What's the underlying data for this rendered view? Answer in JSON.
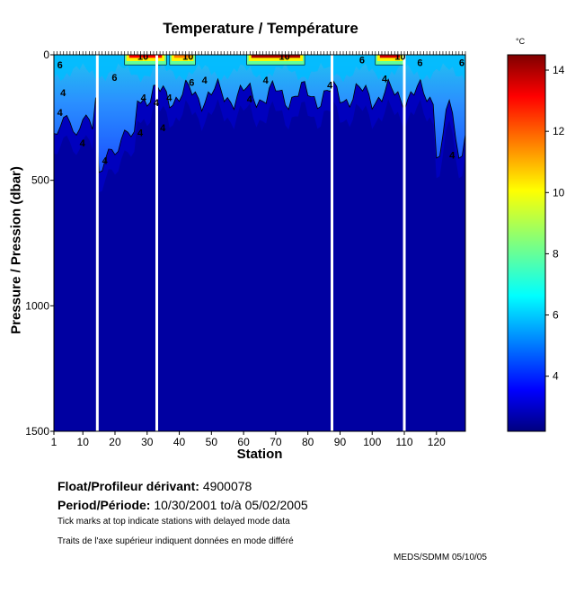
{
  "title": "Temperature / Température",
  "ylabel": "Pressure / Pression (dbar)",
  "xlabel": "Station",
  "colorbar_unit": "°C",
  "float_label": "Float/Profileur dérivant:",
  "float_id": "4900078",
  "period_label": "Period/Période:",
  "period_from": "10/30/2001",
  "period_to_label": "to/à",
  "period_to": "05/02/2005",
  "note_en": "Tick marks at top indicate stations with delayed mode data",
  "note_fr": "Traits de l'axe supérieur indiquent données en mode différé",
  "credit": "MEDS/SDMM  05/10/05",
  "chart_data": {
    "type": "heatmap",
    "x_axis": {
      "label": "Station",
      "range": [
        1,
        129
      ],
      "ticks": [
        1,
        10,
        20,
        30,
        40,
        50,
        60,
        70,
        80,
        90,
        100,
        110,
        120
      ]
    },
    "y_axis": {
      "label": "Pressure / Pression (dbar)",
      "range": [
        0,
        1500
      ],
      "inverted": true,
      "ticks": [
        0,
        500,
        1000,
        1500
      ]
    },
    "colorbar": {
      "unit": "°C",
      "range": [
        2.2,
        14.5
      ],
      "ticks": [
        4,
        6,
        8,
        10,
        12,
        14
      ],
      "colormap": "jet"
    },
    "contour_levels": [
      4,
      6,
      10
    ],
    "contour_labels": [
      {
        "x": 2,
        "p": 40,
        "text": "6"
      },
      {
        "x": 3,
        "p": 150,
        "text": "4"
      },
      {
        "x": 2,
        "p": 230,
        "text": "4"
      },
      {
        "x": 9,
        "p": 350,
        "text": "4"
      },
      {
        "x": 19,
        "p": 90,
        "text": "6"
      },
      {
        "x": 16,
        "p": 420,
        "text": "4"
      },
      {
        "x": 27,
        "p": 310,
        "text": "4"
      },
      {
        "x": 28,
        "p": 170,
        "text": "4"
      },
      {
        "x": 32,
        "p": 190,
        "text": "4"
      },
      {
        "x": 34,
        "p": 290,
        "text": "4"
      },
      {
        "x": 36,
        "p": 170,
        "text": "4"
      },
      {
        "x": 27,
        "p": 5,
        "text": "10"
      },
      {
        "x": 41,
        "p": 5,
        "text": "10"
      },
      {
        "x": 43,
        "p": 110,
        "text": "6"
      },
      {
        "x": 47,
        "p": 100,
        "text": "4"
      },
      {
        "x": 61,
        "p": 175,
        "text": "4"
      },
      {
        "x": 71,
        "p": 5,
        "text": "10"
      },
      {
        "x": 66,
        "p": 100,
        "text": "4"
      },
      {
        "x": 86,
        "p": 120,
        "text": "4"
      },
      {
        "x": 96,
        "p": 20,
        "text": "6"
      },
      {
        "x": 107,
        "p": 5,
        "text": "10"
      },
      {
        "x": 114,
        "p": 30,
        "text": "6"
      },
      {
        "x": 127,
        "p": 30,
        "text": "6"
      },
      {
        "x": 103,
        "p": 95,
        "text": "4"
      },
      {
        "x": 124,
        "p": 400,
        "text": "4"
      }
    ],
    "data_gaps": [
      {
        "station": 14.5,
        "p_from": 0,
        "p_to": 1500
      },
      {
        "station": 33,
        "p_from": 0,
        "p_to": 1500
      },
      {
        "station": 87.5,
        "p_from": 0,
        "p_to": 1500
      },
      {
        "station": 110,
        "p_from": 0,
        "p_to": 1500
      }
    ],
    "surface_warm_patches": [
      {
        "from": 23,
        "to": 36,
        "max_temp": 13
      },
      {
        "from": 37,
        "to": 45,
        "max_temp": 11.5
      },
      {
        "from": 61,
        "to": 79,
        "max_temp": 14
      },
      {
        "from": 101,
        "to": 110,
        "max_temp": 13.5
      }
    ],
    "deep_temp": 2.6,
    "surface_temp": 6
  }
}
